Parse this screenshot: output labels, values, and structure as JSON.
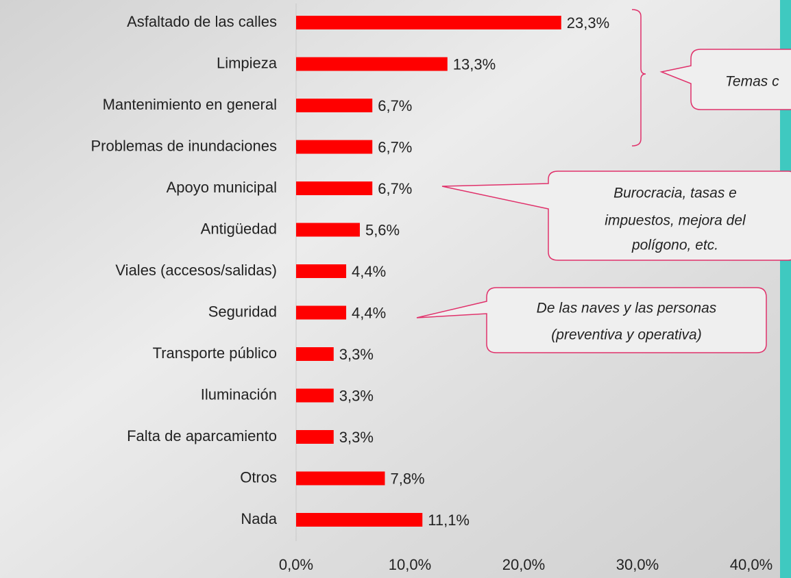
{
  "chart_data": {
    "type": "hbar",
    "categories": [
      "Asfaltado de las calles",
      "Limpieza",
      "Mantenimiento en general",
      "Problemas de inundaciones",
      "Apoyo municipal",
      "Antigüedad",
      "Viales (accesos/salidas)",
      "Seguridad",
      "Transporte público",
      "Iluminación",
      "Falta de aparcamiento",
      "Otros",
      "Nada"
    ],
    "values": [
      23.3,
      13.3,
      6.7,
      6.7,
      6.7,
      5.6,
      4.4,
      4.4,
      3.3,
      3.3,
      3.3,
      7.8,
      11.1
    ],
    "value_labels": [
      "23,3%",
      "13,3%",
      "6,7%",
      "6,7%",
      "6,7%",
      "5,6%",
      "4,4%",
      "4,4%",
      "3,3%",
      "3,3%",
      "3,3%",
      "7,8%",
      "11,1%"
    ],
    "color": "#ff0000",
    "xlim": [
      0,
      40
    ],
    "xticks": [
      {
        "value": 0,
        "label": "0,0%"
      },
      {
        "value": 10,
        "label": "10,0%"
      },
      {
        "value": 20,
        "label": "20,0%"
      },
      {
        "value": 30,
        "label": "30,0%"
      },
      {
        "value": 40,
        "label": "40,0%"
      }
    ],
    "annotations": [
      {
        "lines": [
          "Temas c"
        ]
      },
      {
        "lines": [
          "Burocracia, tasas e",
          "impuestos,  mejora del",
          "polígono, etc."
        ]
      },
      {
        "lines": [
          "De las naves y las personas",
          "(preventiva y operativa)"
        ]
      }
    ]
  }
}
